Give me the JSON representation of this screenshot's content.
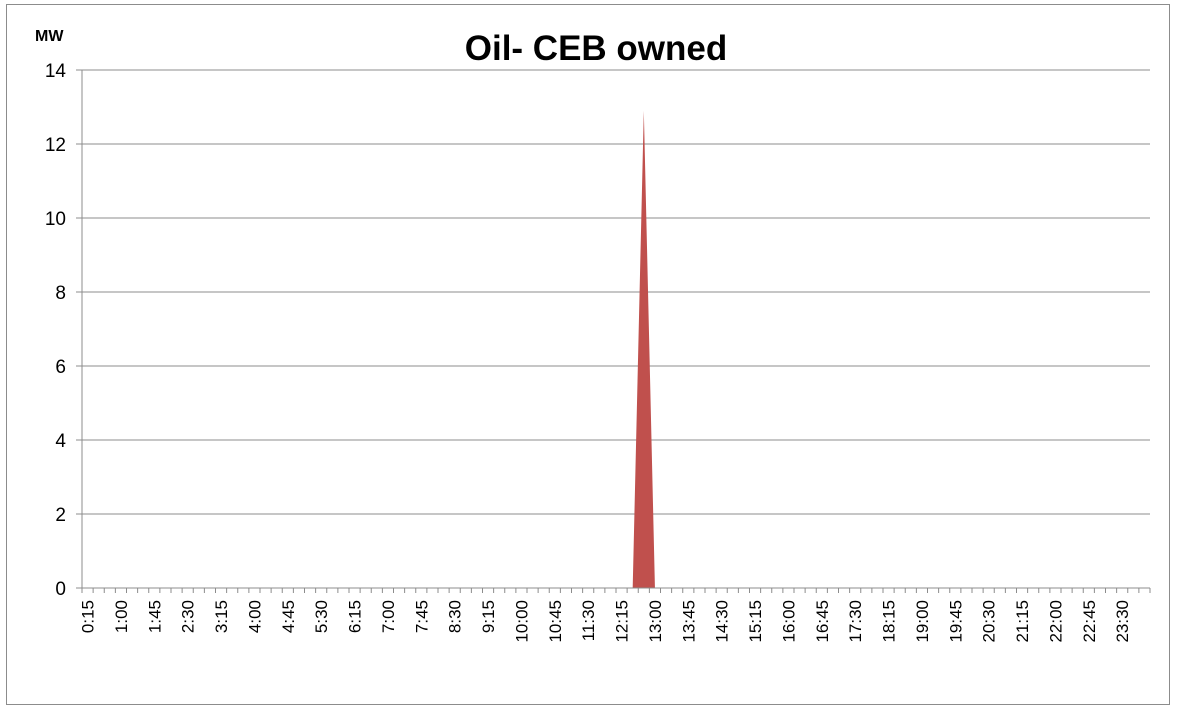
{
  "chart_data": {
    "type": "area",
    "title": "Oil- CEB owned",
    "unit_label": "MW",
    "xlabel": "",
    "ylabel": "",
    "ylim": [
      0,
      14
    ],
    "y_ticks": [
      0,
      2,
      4,
      6,
      8,
      10,
      12,
      14
    ],
    "grid": true,
    "legend": "none",
    "series_color": "#C0504D",
    "x_tick_labels": [
      "0:15",
      "1:00",
      "1:45",
      "2:30",
      "3:15",
      "4:00",
      "4:45",
      "5:30",
      "6:15",
      "7:00",
      "7:45",
      "8:30",
      "9:15",
      "10:00",
      "10:45",
      "11:30",
      "12:15",
      "13:00",
      "13:45",
      "14:30",
      "15:15",
      "16:00",
      "16:45",
      "17:30",
      "18:15",
      "19:00",
      "19:45",
      "20:30",
      "21:15",
      "22:00",
      "22:45",
      "23:30"
    ],
    "series": [
      {
        "x": [
          "0:15",
          "0:30",
          "0:45",
          "1:00",
          "1:15",
          "1:30",
          "1:45",
          "2:00",
          "2:15",
          "2:30",
          "2:45",
          "3:00",
          "3:15",
          "3:30",
          "3:45",
          "4:00",
          "4:15",
          "4:30",
          "4:45",
          "5:00",
          "5:15",
          "5:30",
          "5:45",
          "6:00",
          "6:15",
          "6:30",
          "6:45",
          "7:00",
          "7:15",
          "7:30",
          "7:45",
          "8:00",
          "8:15",
          "8:30",
          "8:45",
          "9:00",
          "9:15",
          "9:30",
          "9:45",
          "10:00",
          "10:15",
          "10:30",
          "10:45",
          "11:00",
          "11:15",
          "11:30",
          "11:45",
          "12:00",
          "12:15",
          "12:30",
          "12:45",
          "13:00",
          "13:15",
          "13:30",
          "13:45",
          "14:00",
          "14:15",
          "14:30",
          "14:45",
          "15:00",
          "15:15",
          "15:30",
          "15:45",
          "16:00",
          "16:15",
          "16:30",
          "16:45",
          "17:00",
          "17:15",
          "17:30",
          "17:45",
          "18:00",
          "18:15",
          "18:30",
          "18:45",
          "19:00",
          "19:15",
          "19:30",
          "19:45",
          "20:00",
          "20:15",
          "20:30",
          "20:45",
          "21:00",
          "21:15",
          "21:30",
          "21:45",
          "22:00",
          "22:15",
          "22:30",
          "22:45",
          "23:00",
          "23:15",
          "23:30",
          "23:45",
          "0:00"
        ],
        "values": [
          0,
          0,
          0,
          0,
          0,
          0,
          0,
          0,
          0,
          0,
          0,
          0,
          0,
          0,
          0,
          0,
          0,
          0,
          0,
          0,
          0,
          0,
          0,
          0,
          0,
          0,
          0,
          0,
          0,
          0,
          0,
          0,
          0,
          0,
          0,
          0,
          0,
          0,
          0,
          0,
          0,
          0,
          0,
          0,
          0,
          0,
          0,
          0,
          0,
          0,
          12.9,
          0,
          0,
          0,
          0,
          0,
          0,
          0,
          0,
          0,
          0,
          0,
          0,
          0,
          0,
          0,
          0,
          0,
          0,
          0,
          0,
          0,
          0,
          0,
          0,
          0,
          0,
          0,
          0,
          0,
          0,
          0,
          0,
          0,
          0,
          0,
          0,
          0,
          0,
          0,
          0,
          0,
          0,
          0,
          0,
          0
        ]
      }
    ]
  }
}
